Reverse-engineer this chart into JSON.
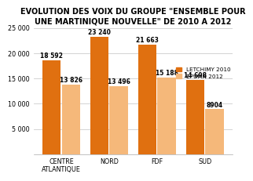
{
  "title": "EVOLUTION DES VOIX DU GROUPE \"ENSEMBLE POUR\nUNE MARTINIQUE NOUVELLE\" DE 2010 A 2012",
  "categories": [
    "CENTRE\nATLANTIQUE",
    "NORD",
    "FDF",
    "SUD"
  ],
  "letchimy_2010": [
    18592,
    23240,
    21663,
    14698
  ],
  "epumn_2012": [
    13826,
    13496,
    15188,
    8904
  ],
  "color_letchimy": "#E07010",
  "color_epumn": "#F5B87A",
  "legend_letchimy": "LETCHIMY 2010",
  "legend_epumn": "EPUMN 2012",
  "ylim": [
    0,
    25000
  ],
  "yticks": [
    0,
    5000,
    10000,
    15000,
    20000,
    25000
  ],
  "ytick_labels": [
    "",
    "5 000",
    "10 000",
    "15 000",
    "20 000",
    "25 000"
  ],
  "bg_color": "#FFFFFF",
  "plot_bg_color": "#FFFFFF",
  "title_fontsize": 7.0,
  "label_fontsize": 5.8,
  "bar_label_fontsize": 5.5,
  "legend_fontsize": 5.2
}
